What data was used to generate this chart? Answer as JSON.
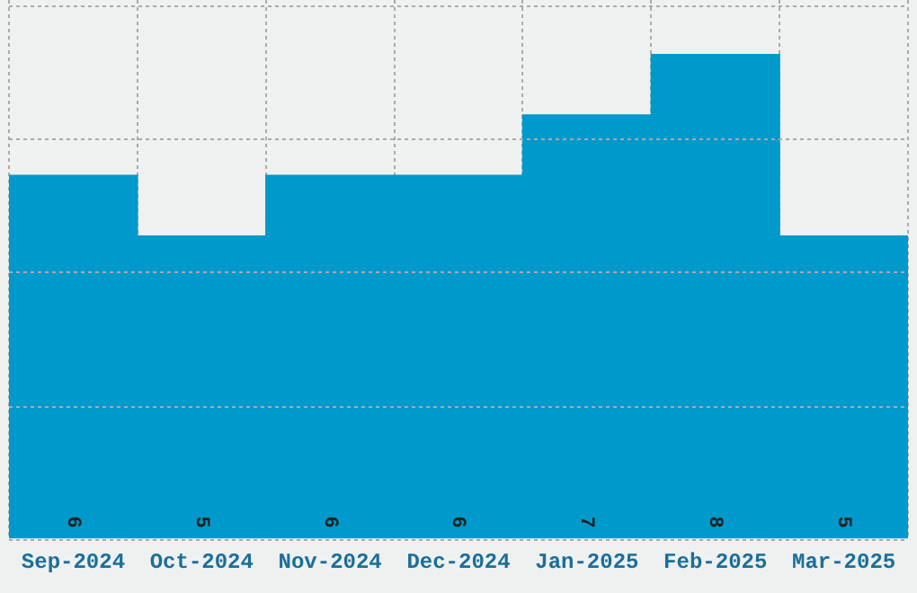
{
  "chart_data": {
    "type": "bar",
    "categories": [
      "Sep-2024",
      "Oct-2024",
      "Nov-2024",
      "Dec-2024",
      "Jan-2025",
      "Feb-2025",
      "Mar-2025"
    ],
    "values": [
      6,
      5,
      6,
      6,
      7,
      8,
      5
    ],
    "color": "#0099cc",
    "data_labels": true,
    "ylim": [
      0,
      8.9
    ],
    "yticks": [
      {
        "value": 0,
        "label": null
      },
      {
        "value": 2.2,
        "label": null
      },
      {
        "value": 4.4,
        "label": null
      },
      {
        "value": 6.6,
        "label": null
      },
      {
        "value": 8.8,
        "label": null
      }
    ],
    "grid": true,
    "tick_labels": "x",
    "legend": false
  }
}
